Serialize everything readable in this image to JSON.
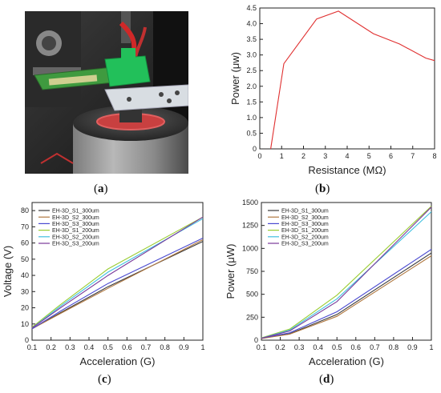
{
  "panels": {
    "a": {
      "label": "a",
      "image": "photograph of 3D-printed energy harvester mounted on shaker"
    },
    "b": {
      "label": "b"
    },
    "c": {
      "label": "c"
    },
    "d": {
      "label": "d"
    }
  },
  "chart_data": [
    {
      "id": "b",
      "type": "line",
      "xlabel": "Resistance (MΩ)",
      "ylabel": "Power (μw)",
      "xlim": [
        0,
        8
      ],
      "ylim": [
        0,
        4.5
      ],
      "xticks": [
        0,
        1,
        2,
        3,
        4,
        5,
        6,
        7,
        8
      ],
      "yticks": [
        0,
        0.5,
        1.0,
        1.5,
        2.0,
        2.5,
        3.0,
        3.5,
        4.0,
        4.5
      ],
      "ytick_labels": [
        "0",
        "0.5",
        "1.0",
        "1.5",
        "2.0",
        "2.5",
        "3.0",
        "3.5",
        "4.0",
        "4.5"
      ],
      "grid": false,
      "series": [
        {
          "color": "#e03030",
          "x": [
            0.5,
            1.1,
            2.6,
            3.6,
            5.2,
            6.4,
            7.6,
            8.0
          ],
          "y": [
            0.0,
            2.72,
            4.15,
            4.4,
            3.68,
            3.35,
            2.9,
            2.82
          ]
        }
      ]
    },
    {
      "id": "c",
      "type": "line",
      "xlabel": "Acceleration (G)",
      "ylabel": "Voltage (V)",
      "xlim": [
        0.1,
        1.0
      ],
      "ylim": [
        0,
        85
      ],
      "xticks": [
        0.1,
        0.2,
        0.3,
        0.4,
        0.5,
        0.6,
        0.7,
        0.8,
        0.9,
        1.0
      ],
      "yticks": [
        0,
        10,
        20,
        30,
        40,
        50,
        60,
        70,
        80
      ],
      "grid": false,
      "legend": "top-left",
      "series": [
        {
          "name": "EH-3D_S1_300um",
          "color": "#3a3a3a",
          "x": [
            0.1,
            0.25,
            0.5,
            1.0
          ],
          "y": [
            7,
            17,
            33,
            61
          ]
        },
        {
          "name": "EH-3D_S2_300um",
          "color": "#b07840",
          "x": [
            0.1,
            0.25,
            0.5,
            1.0
          ],
          "y": [
            7,
            16.5,
            32,
            62
          ]
        },
        {
          "name": "EH-3D_S3_300um",
          "color": "#4a4ad0",
          "x": [
            0.1,
            0.25,
            0.5,
            1.0
          ],
          "y": [
            7,
            18,
            35,
            63
          ]
        },
        {
          "name": "EH-3D_S1_200um",
          "color": "#9acd32",
          "x": [
            0.1,
            0.25,
            0.5,
            1.0
          ],
          "y": [
            8,
            22,
            44,
            76
          ]
        },
        {
          "name": "EH-3D_S2_200um",
          "color": "#40c0e0",
          "x": [
            0.1,
            0.25,
            0.5,
            1.0
          ],
          "y": [
            7.5,
            21,
            42,
            75
          ]
        },
        {
          "name": "EH-3D_S3_200um",
          "color": "#7a3a9a",
          "x": [
            0.1,
            0.25,
            0.5,
            1.0
          ],
          "y": [
            7.5,
            20,
            40,
            76
          ]
        }
      ]
    },
    {
      "id": "d",
      "type": "line",
      "xlabel": "Acceleration (G)",
      "ylabel": "Power (μW)",
      "xlim": [
        0.1,
        1.0
      ],
      "ylim": [
        0,
        1500
      ],
      "xticks": [
        0.1,
        0.2,
        0.3,
        0.4,
        0.5,
        0.6,
        0.7,
        0.8,
        0.9,
        1.0
      ],
      "yticks": [
        0,
        250,
        500,
        750,
        1000,
        1250,
        1500
      ],
      "grid": false,
      "legend": "top-left",
      "series": [
        {
          "name": "EH-3D_S1_300um",
          "color": "#3a3a3a",
          "x": [
            0.1,
            0.25,
            0.5,
            1.0
          ],
          "y": [
            20,
            70,
            280,
            950
          ]
        },
        {
          "name": "EH-3D_S2_300um",
          "color": "#b07840",
          "x": [
            0.1,
            0.25,
            0.5,
            1.0
          ],
          "y": [
            18,
            65,
            260,
            920
          ]
        },
        {
          "name": "EH-3D_S3_300um",
          "color": "#4a4ad0",
          "x": [
            0.1,
            0.25,
            0.5,
            1.0
          ],
          "y": [
            22,
            80,
            310,
            990
          ]
        },
        {
          "name": "EH-3D_S1_200um",
          "color": "#9acd32",
          "x": [
            0.1,
            0.25,
            0.5,
            1.0
          ],
          "y": [
            25,
            120,
            490,
            1460
          ]
        },
        {
          "name": "EH-3D_S2_200um",
          "color": "#40c0e0",
          "x": [
            0.1,
            0.25,
            0.5,
            1.0
          ],
          "y": [
            22,
            110,
            450,
            1400
          ]
        },
        {
          "name": "EH-3D_S3_200um",
          "color": "#7a3a9a",
          "x": [
            0.1,
            0.25,
            0.5,
            1.0
          ],
          "y": [
            20,
            100,
            420,
            1450
          ]
        }
      ]
    }
  ]
}
